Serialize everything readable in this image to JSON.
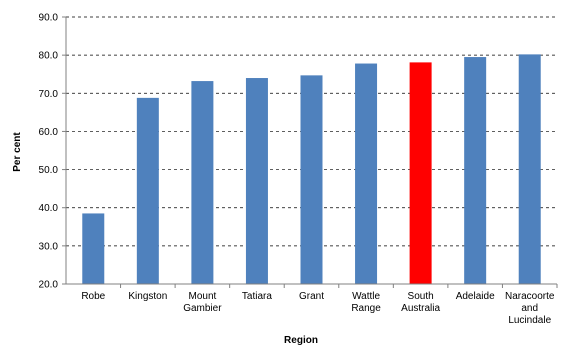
{
  "chart_data": {
    "type": "bar",
    "xlabel": "Region",
    "ylabel": "Per cent",
    "ylim": [
      20,
      90
    ],
    "yticks": [
      "20.0",
      "30.0",
      "40.0",
      "50.0",
      "60.0",
      "70.0",
      "80.0",
      "90.0"
    ],
    "grid": true,
    "categories": [
      [
        "Robe"
      ],
      [
        "Kingston"
      ],
      [
        "Mount",
        "Gambier"
      ],
      [
        "Tatiara"
      ],
      [
        "Grant"
      ],
      [
        "Wattle",
        "Range"
      ],
      [
        "South",
        "Australia"
      ],
      [
        "Adelaide"
      ],
      [
        "Naracoorte",
        "and",
        "Lucindale"
      ]
    ],
    "values": [
      38.5,
      68.8,
      73.2,
      74.0,
      74.7,
      77.8,
      78.1,
      79.5,
      80.2
    ],
    "colors": [
      "#4F81BD",
      "#4F81BD",
      "#4F81BD",
      "#4F81BD",
      "#4F81BD",
      "#4F81BD",
      "#FF0000",
      "#4F81BD",
      "#4F81BD"
    ]
  }
}
